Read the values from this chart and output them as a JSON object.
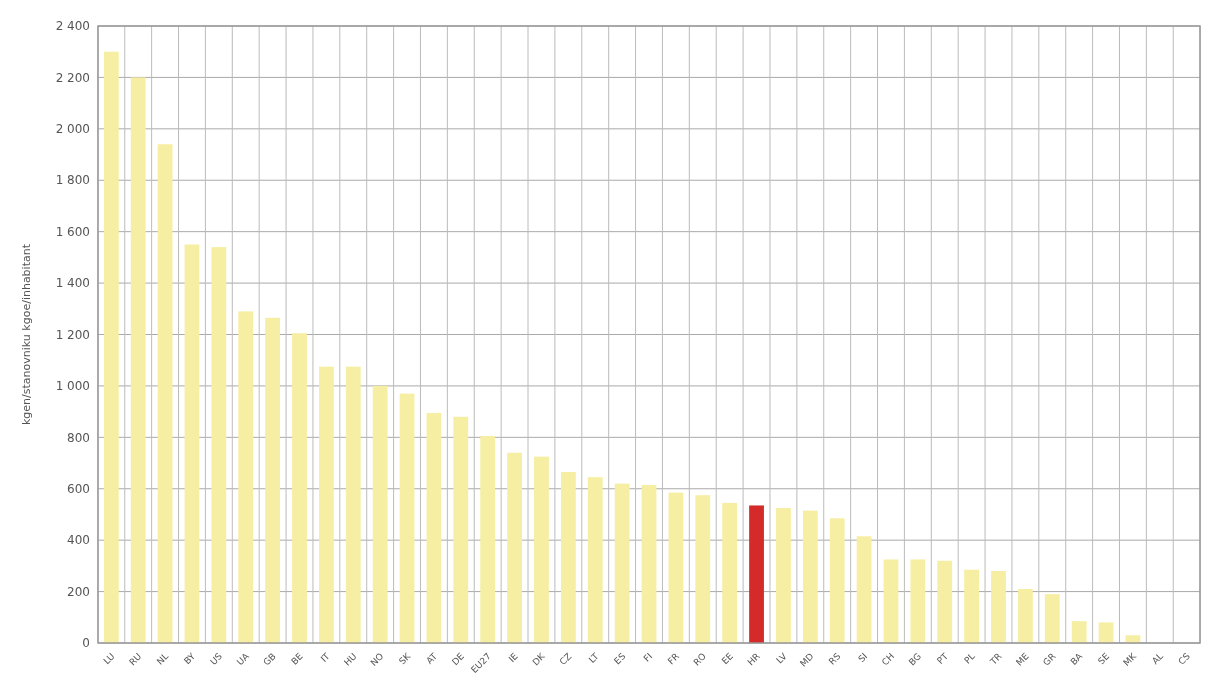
{
  "chart_data": {
    "type": "bar",
    "ylabel": "kgen/stanovniku     kgoe/inhabitant",
    "categories": [
      "LU",
      "RU",
      "NL",
      "BY",
      "US",
      "UA",
      "GB",
      "BE",
      "IT",
      "HU",
      "NO",
      "SK",
      "AT",
      "DE",
      "EU27",
      "IE",
      "DK",
      "CZ",
      "LT",
      "ES",
      "FI",
      "FR",
      "RO",
      "EE",
      "HR",
      "LV",
      "MD",
      "RS",
      "SI",
      "CH",
      "BG",
      "PT",
      "PL",
      "TR",
      "ME",
      "GR",
      "BA",
      "SE",
      "MK",
      "AL",
      "CS"
    ],
    "values": [
      2300,
      2200,
      1940,
      1550,
      1540,
      1290,
      1265,
      1205,
      1075,
      1075,
      1000,
      970,
      895,
      880,
      805,
      740,
      725,
      665,
      645,
      620,
      615,
      585,
      575,
      545,
      535,
      525,
      515,
      485,
      415,
      325,
      325,
      320,
      285,
      280,
      210,
      190,
      85,
      80,
      30,
      0,
      0
    ],
    "colors": [
      "#f6eea2",
      "#f6eea2",
      "#f6eea2",
      "#f6eea2",
      "#f6eea2",
      "#f6eea2",
      "#f6eea2",
      "#f6eea2",
      "#f6eea2",
      "#f6eea2",
      "#f6eea2",
      "#f6eea2",
      "#f6eea2",
      "#f6eea2",
      "#f6eea2",
      "#f6eea2",
      "#f6eea2",
      "#f6eea2",
      "#f6eea2",
      "#f6eea2",
      "#f6eea2",
      "#f6eea2",
      "#f6eea2",
      "#f6eea2",
      "#d42a2a",
      "#f6eea2",
      "#f6eea2",
      "#f6eea2",
      "#f6eea2",
      "#f6eea2",
      "#f6eea2",
      "#f6eea2",
      "#f6eea2",
      "#f6eea2",
      "#f6eea2",
      "#f6eea2",
      "#f6eea2",
      "#f6eea2",
      "#f6eea2",
      "#f6eea2",
      "#f6eea2"
    ],
    "ylim": [
      0,
      2400
    ],
    "yticks": [
      0,
      200,
      400,
      600,
      800,
      {
        "value": 1000,
        "label": "1 000"
      },
      {
        "value": 1200,
        "label": "1 200"
      },
      {
        "value": 1400,
        "label": "1 400"
      },
      {
        "value": 1600,
        "label": "1 600"
      },
      {
        "value": 1800,
        "label": "1 800"
      },
      {
        "value": 2000,
        "label": "2 000"
      },
      {
        "value": 2200,
        "label": "2 200"
      },
      {
        "value": 2400,
        "label": "2 400"
      }
    ],
    "grid": true
  }
}
